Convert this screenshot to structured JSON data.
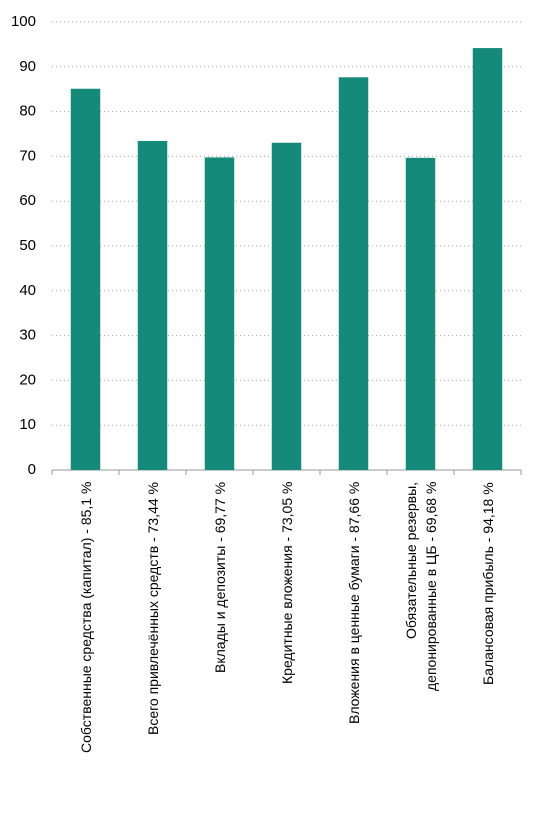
{
  "chart_data": {
    "type": "bar",
    "categories": [
      "Собственные средства (капитал) - 85,1 %",
      "Всего привлечённых средств - 73,44 %",
      "Вклады и депозиты - 69,77 %",
      "Кредитные вложения - 73,05 %",
      "Вложения в ценные бумаги - 87,66 %",
      "Обязательные резервы,\nдепонированные в ЦБ - 69,68 %",
      "Балансовая прибыль - 94,18 %"
    ],
    "values": [
      85.1,
      73.44,
      69.77,
      73.05,
      87.66,
      69.68,
      94.18
    ],
    "color": "#15897a",
    "ylim": [
      0,
      100
    ],
    "yticks": [
      0,
      10,
      20,
      30,
      40,
      50,
      60,
      70,
      80,
      90,
      100
    ],
    "grid": true
  }
}
